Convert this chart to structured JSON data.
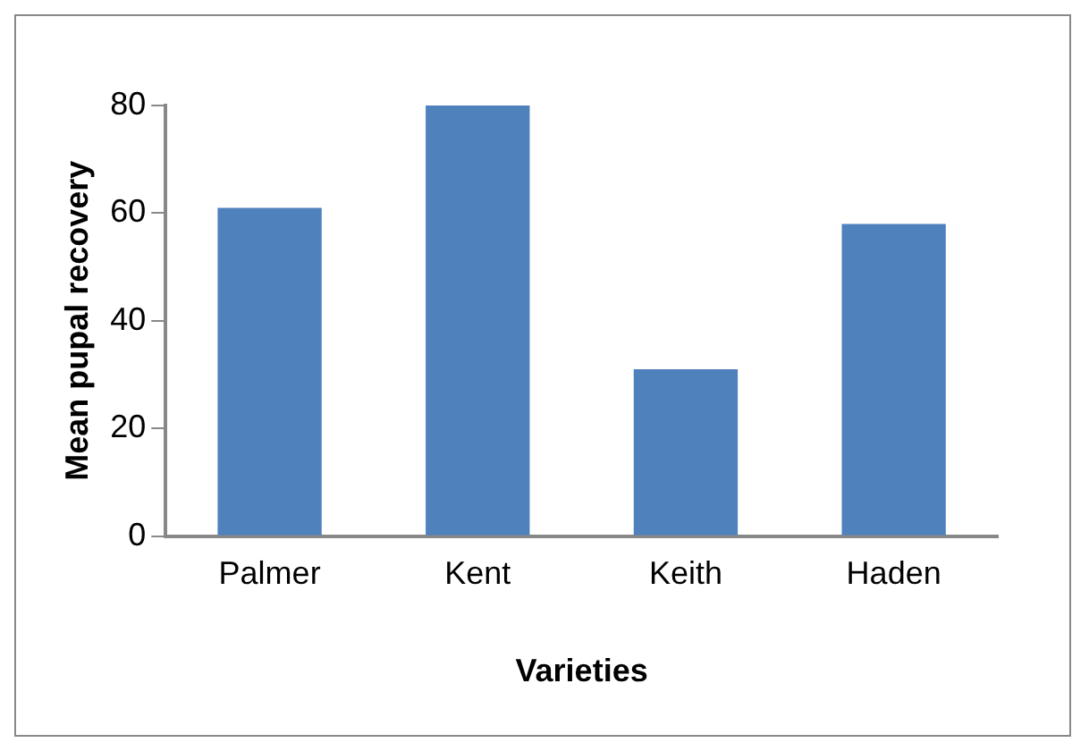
{
  "chart_data": {
    "type": "bar",
    "xlabel": "Varieties",
    "ylabel": "Mean pupal recovery",
    "categories": [
      "Palmer",
      "Kent",
      "Keith",
      "Haden"
    ],
    "values": [
      61,
      80,
      31,
      58
    ],
    "color": "#4f81bd",
    "ylim": [
      0,
      80
    ],
    "yticks": [
      0,
      20,
      40,
      60,
      80
    ],
    "grid": false,
    "legend": false
  }
}
